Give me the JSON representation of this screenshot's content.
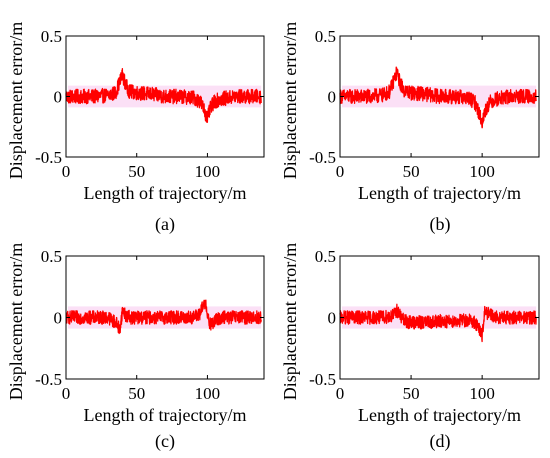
{
  "chart_data": [
    {
      "type": "line",
      "caption": "(a)",
      "xlabel": "Length of trajectory/m",
      "ylabel": "Displacement error/m",
      "xlim": [
        0,
        140
      ],
      "ylim": [
        -0.5,
        0.5
      ],
      "xticks": [
        0,
        50,
        100
      ],
      "yticks": [
        -0.5,
        0,
        0.5
      ],
      "ytick_labels": [
        "-0.5",
        "0",
        "0.5"
      ],
      "grid": false,
      "noise_amplitude": 0.06,
      "series": [
        {
          "color": "#ff0000",
          "x": [
            0,
            10,
            20,
            30,
            35,
            38,
            40,
            42,
            45,
            50,
            60,
            70,
            80,
            90,
            95,
            98,
            100,
            102,
            105,
            110,
            120,
            130,
            138
          ],
          "y": [
            0.0,
            0.0,
            0.0,
            0.01,
            0.03,
            0.12,
            0.18,
            0.1,
            0.04,
            0.03,
            0.02,
            0.0,
            0.0,
            -0.01,
            -0.04,
            -0.12,
            -0.18,
            -0.1,
            -0.04,
            -0.02,
            0.0,
            0.0,
            0.0
          ]
        }
      ]
    },
    {
      "type": "line",
      "caption": "(b)",
      "xlabel": "Length of trajectory/m",
      "ylabel": "Displacement error/m",
      "xlim": [
        0,
        140
      ],
      "ylim": [
        -0.5,
        0.5
      ],
      "xticks": [
        0,
        50,
        100
      ],
      "yticks": [
        -0.5,
        0,
        0.5
      ],
      "ytick_labels": [
        "-0.5",
        "0",
        "0.5"
      ],
      "grid": false,
      "noise_amplitude": 0.06,
      "series": [
        {
          "color": "#ff0000",
          "x": [
            0,
            10,
            20,
            30,
            35,
            38,
            40,
            42,
            45,
            50,
            60,
            70,
            80,
            90,
            95,
            98,
            100,
            102,
            105,
            110,
            120,
            130,
            138
          ],
          "y": [
            0.0,
            0.0,
            0.0,
            0.01,
            0.04,
            0.14,
            0.2,
            0.12,
            0.05,
            0.03,
            0.02,
            0.0,
            0.0,
            -0.01,
            -0.05,
            -0.14,
            -0.22,
            -0.12,
            -0.05,
            -0.02,
            0.0,
            0.0,
            0.0
          ]
        }
      ]
    },
    {
      "type": "line",
      "caption": "(c)",
      "xlabel": "Length of trajectory/m",
      "ylabel": "Displacement error/m",
      "xlim": [
        0,
        140
      ],
      "ylim": [
        -0.5,
        0.5
      ],
      "xticks": [
        0,
        50,
        100
      ],
      "yticks": [
        -0.5,
        0,
        0.5
      ],
      "ytick_labels": [
        "-0.5",
        "0",
        "0.5"
      ],
      "grid": false,
      "noise_amplitude": 0.055,
      "series": [
        {
          "color": "#ff0000",
          "x": [
            0,
            10,
            20,
            30,
            36,
            38,
            40,
            42,
            45,
            50,
            60,
            70,
            80,
            90,
            95,
            97,
            99,
            101,
            103,
            106,
            110,
            120,
            130,
            138
          ],
          "y": [
            0.0,
            0.0,
            0.0,
            0.0,
            -0.05,
            -0.1,
            0.06,
            0.02,
            0.0,
            0.0,
            0.0,
            0.0,
            0.0,
            0.0,
            0.03,
            0.1,
            0.12,
            -0.05,
            -0.06,
            -0.02,
            0.0,
            0.0,
            0.0,
            0.0
          ]
        }
      ]
    },
    {
      "type": "line",
      "caption": "(d)",
      "xlabel": "Length of trajectory/m",
      "ylabel": "Displacement error/m",
      "xlim": [
        0,
        140
      ],
      "ylim": [
        -0.5,
        0.5
      ],
      "xticks": [
        0,
        50,
        100
      ],
      "yticks": [
        -0.5,
        0,
        0.5
      ],
      "ytick_labels": [
        "-0.5",
        "0",
        "0.5"
      ],
      "grid": false,
      "noise_amplitude": 0.055,
      "series": [
        {
          "color": "#ff0000",
          "x": [
            0,
            10,
            20,
            30,
            38,
            40,
            42,
            45,
            50,
            60,
            70,
            80,
            90,
            95,
            98,
            100,
            102,
            105,
            110,
            120,
            130,
            138
          ],
          "y": [
            0.0,
            0.0,
            0.0,
            0.0,
            0.02,
            0.06,
            0.02,
            -0.03,
            -0.04,
            -0.04,
            -0.03,
            -0.03,
            -0.02,
            -0.04,
            -0.1,
            -0.15,
            0.06,
            0.02,
            0.0,
            0.0,
            0.0,
            0.0
          ]
        }
      ]
    }
  ]
}
